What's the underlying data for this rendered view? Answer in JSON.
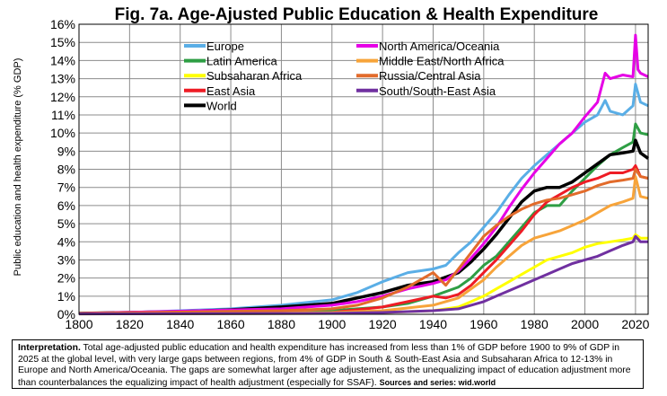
{
  "chart_data": {
    "type": "line",
    "title": "Fig. 7a. Age-Ajusted Public Education & Health Expenditure",
    "xlabel": "",
    "ylabel": "Public education and health expenditure (% GDP)",
    "xlim": [
      1800,
      2025
    ],
    "ylim": [
      0,
      16
    ],
    "xticks": [
      1800,
      1820,
      1840,
      1860,
      1880,
      1900,
      1920,
      1940,
      1960,
      1980,
      2000,
      2020
    ],
    "yticks": [
      "0%",
      "1%",
      "2%",
      "3%",
      "4%",
      "5%",
      "6%",
      "7%",
      "8%",
      "9%",
      "10%",
      "11%",
      "12%",
      "13%",
      "14%",
      "15%",
      "16%"
    ],
    "grid": true,
    "legend_position": "top-left",
    "series": [
      {
        "name": "Europe",
        "color": "#5aaee6",
        "x": [
          1800,
          1820,
          1840,
          1860,
          1880,
          1900,
          1910,
          1920,
          1930,
          1940,
          1945,
          1950,
          1955,
          1960,
          1965,
          1970,
          1975,
          1980,
          1985,
          1990,
          1995,
          2000,
          2005,
          2008,
          2010,
          2015,
          2019,
          2020,
          2022,
          2025
        ],
        "y": [
          0.05,
          0.1,
          0.2,
          0.3,
          0.5,
          0.8,
          1.2,
          1.8,
          2.3,
          2.5,
          2.7,
          3.4,
          4.0,
          4.8,
          5.6,
          6.6,
          7.5,
          8.2,
          8.8,
          9.4,
          10.0,
          10.6,
          11.0,
          11.8,
          11.2,
          11.0,
          11.5,
          12.7,
          11.7,
          11.5
        ]
      },
      {
        "name": "Latin America",
        "color": "#2e9e44",
        "x": [
          1800,
          1900,
          1920,
          1930,
          1940,
          1950,
          1955,
          1960,
          1965,
          1970,
          1975,
          1980,
          1985,
          1990,
          1995,
          2000,
          2005,
          2010,
          2015,
          2019,
          2020,
          2022,
          2025
        ],
        "y": [
          0.05,
          0.2,
          0.4,
          0.6,
          1.0,
          1.5,
          2.0,
          2.7,
          3.2,
          4.0,
          4.8,
          5.6,
          6.0,
          6.0,
          6.8,
          7.5,
          8.2,
          8.8,
          9.2,
          9.5,
          10.5,
          10.0,
          9.9
        ]
      },
      {
        "name": "Subsaharan Africa",
        "color": "#ffff00",
        "x": [
          1800,
          1900,
          1920,
          1940,
          1950,
          1955,
          1960,
          1965,
          1970,
          1975,
          1980,
          1985,
          1990,
          1995,
          2000,
          2005,
          2010,
          2015,
          2019,
          2020,
          2022,
          2025
        ],
        "y": [
          0.02,
          0.05,
          0.1,
          0.2,
          0.4,
          0.7,
          1.0,
          1.4,
          1.8,
          2.2,
          2.6,
          3.0,
          3.2,
          3.4,
          3.7,
          3.9,
          4.0,
          4.1,
          4.2,
          4.4,
          4.2,
          4.2
        ]
      },
      {
        "name": "East Asia",
        "color": "#ee1c25",
        "x": [
          1800,
          1900,
          1920,
          1930,
          1940,
          1945,
          1950,
          1955,
          1960,
          1965,
          1970,
          1975,
          1980,
          1985,
          1990,
          1995,
          2000,
          2005,
          2010,
          2015,
          2019,
          2020,
          2022,
          2025
        ],
        "y": [
          0.03,
          0.1,
          0.4,
          0.7,
          1.0,
          0.9,
          1.1,
          1.6,
          2.3,
          3.0,
          3.8,
          4.6,
          5.5,
          6.2,
          6.6,
          7.0,
          7.3,
          7.5,
          7.8,
          7.8,
          8.0,
          8.2,
          7.6,
          7.5
        ]
      },
      {
        "name": "World",
        "color": "#000000",
        "x": [
          1800,
          1820,
          1840,
          1860,
          1880,
          1900,
          1910,
          1920,
          1930,
          1940,
          1950,
          1955,
          1960,
          1965,
          1970,
          1975,
          1980,
          1985,
          1990,
          1995,
          2000,
          2005,
          2010,
          2015,
          2019,
          2020,
          2022,
          2025
        ],
        "y": [
          0.05,
          0.1,
          0.15,
          0.25,
          0.4,
          0.6,
          0.9,
          1.2,
          1.6,
          1.8,
          2.3,
          2.9,
          3.6,
          4.4,
          5.3,
          6.2,
          6.8,
          7.0,
          7.0,
          7.3,
          7.8,
          8.3,
          8.8,
          8.9,
          9.0,
          9.6,
          8.9,
          8.6
        ]
      },
      {
        "name": "North America/Oceania",
        "color": "#e600e6",
        "x": [
          1800,
          1880,
          1900,
          1910,
          1920,
          1930,
          1940,
          1945,
          1950,
          1955,
          1960,
          1965,
          1970,
          1975,
          1980,
          1985,
          1990,
          1995,
          2000,
          2005,
          2008,
          2010,
          2015,
          2019,
          2020,
          2021,
          2022,
          2025
        ],
        "y": [
          0.05,
          0.3,
          0.5,
          0.7,
          1.0,
          1.4,
          1.7,
          1.9,
          2.4,
          3.1,
          3.9,
          4.8,
          5.9,
          6.9,
          7.8,
          8.6,
          9.4,
          10.0,
          10.9,
          11.7,
          13.3,
          13.0,
          13.2,
          13.1,
          15.4,
          13.5,
          13.3,
          13.1
        ]
      },
      {
        "name": "Middle East/North Africa",
        "color": "#f7a43a",
        "x": [
          1800,
          1900,
          1920,
          1940,
          1950,
          1955,
          1960,
          1965,
          1970,
          1975,
          1980,
          1985,
          1990,
          1995,
          2000,
          2005,
          2010,
          2015,
          2019,
          2020,
          2022,
          2025
        ],
        "y": [
          0.03,
          0.1,
          0.2,
          0.5,
          0.9,
          1.4,
          1.9,
          2.6,
          3.2,
          3.8,
          4.2,
          4.4,
          4.6,
          4.9,
          5.2,
          5.6,
          6.0,
          6.2,
          6.4,
          7.6,
          6.5,
          6.4
        ]
      },
      {
        "name": "Russia/Central Asia",
        "color": "#e26b2b",
        "x": [
          1800,
          1880,
          1900,
          1910,
          1920,
          1930,
          1940,
          1945,
          1950,
          1955,
          1960,
          1965,
          1970,
          1975,
          1980,
          1985,
          1990,
          1995,
          2000,
          2005,
          2010,
          2015,
          2019,
          2020,
          2022,
          2025
        ],
        "y": [
          0.05,
          0.2,
          0.3,
          0.5,
          0.9,
          1.5,
          2.3,
          1.6,
          2.5,
          3.4,
          4.3,
          4.9,
          5.4,
          5.8,
          6.1,
          6.3,
          6.4,
          6.6,
          6.8,
          7.1,
          7.3,
          7.4,
          7.5,
          8.0,
          7.6,
          7.5
        ]
      },
      {
        "name": "South/South-East Asia",
        "color": "#7030a0",
        "x": [
          1800,
          1900,
          1920,
          1940,
          1950,
          1955,
          1960,
          1965,
          1970,
          1975,
          1980,
          1985,
          1990,
          1995,
          2000,
          2005,
          2010,
          2015,
          2019,
          2020,
          2022,
          2025
        ],
        "y": [
          0.02,
          0.05,
          0.1,
          0.2,
          0.3,
          0.5,
          0.7,
          1.0,
          1.3,
          1.6,
          1.9,
          2.2,
          2.5,
          2.8,
          3.0,
          3.2,
          3.5,
          3.8,
          4.0,
          4.3,
          4.0,
          4.0
        ]
      }
    ],
    "legend_order": [
      "Europe",
      "North America/Oceania",
      "Latin America",
      "Middle East/North Africa",
      "Subsaharan Africa",
      "Russia/Central Asia",
      "East Asia",
      "South/South-East Asia",
      "World"
    ]
  },
  "note": {
    "interpretation_label": "Interpretation.",
    "interpretation_text": " Total age-adjusted public education and health expenditure has increased from less than 1% of GDP before 1900 to 9% of GDP in 2025 at the global level, with very large gaps between regions, from 4% of GDP in South & South-East Asia and Subsaharan Africa to 12-13% in Europe and North America/Oceania. The gaps are somewhat larger after age adjustement, as the unequalizing impact of education adjustment more than counterbalances the equalizing impact of health adjustment (especially for SSAF). ",
    "sources_label": "Sources and series",
    "sources_text": ": wid.world"
  }
}
